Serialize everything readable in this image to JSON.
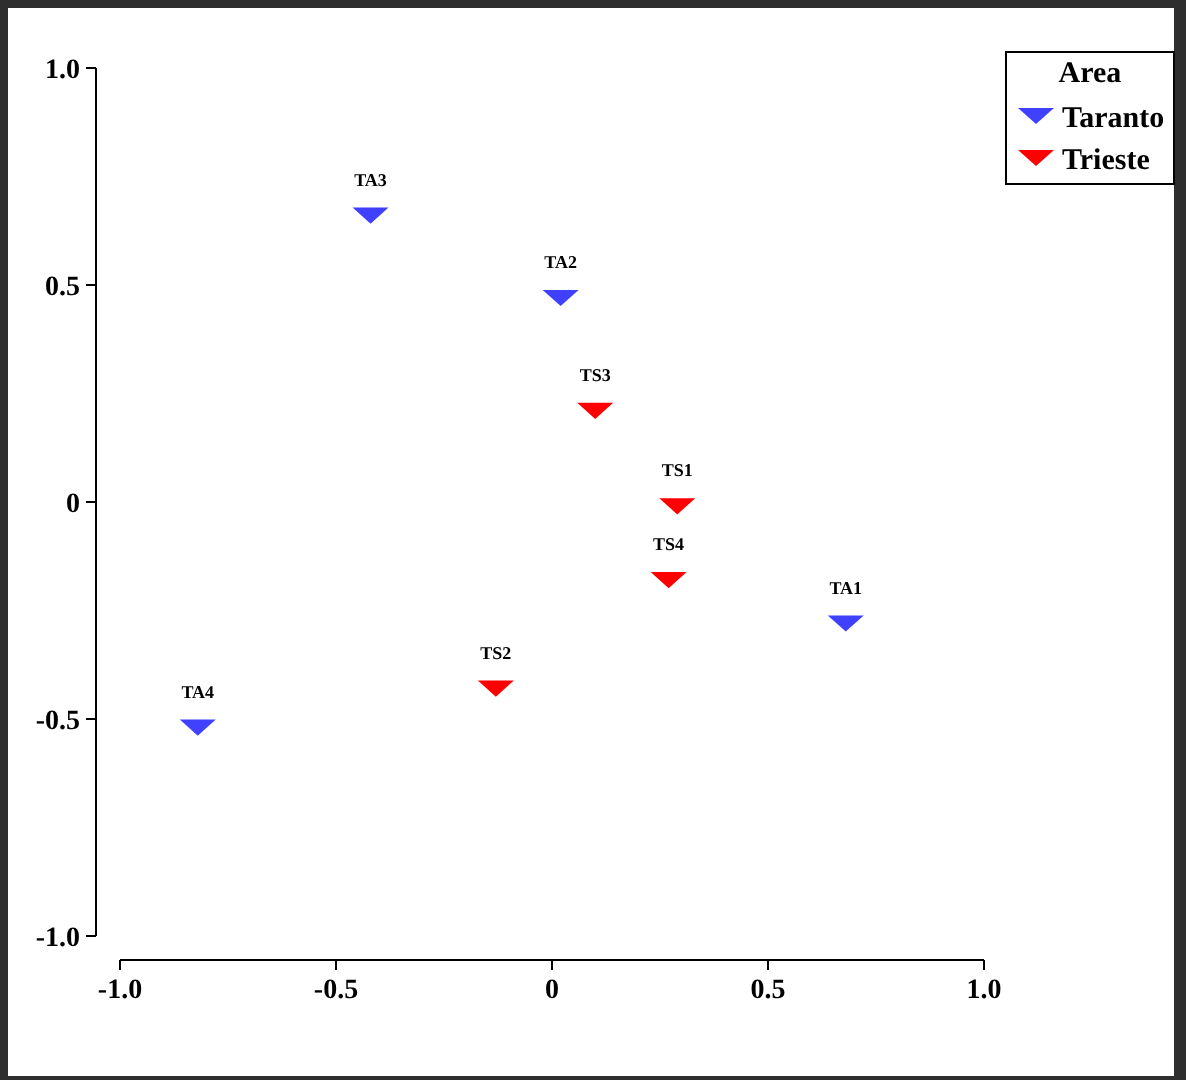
{
  "chart_data": {
    "type": "scatter",
    "legend_title": "Area",
    "legend": "top right",
    "marker": "triangle",
    "grid": false,
    "xlim": [
      -1,
      1
    ],
    "ylim": [
      -1,
      1
    ],
    "xticks": [
      {
        "value": -1,
        "label": "-1.0"
      },
      {
        "value": -0.5,
        "label": "-0.5"
      },
      0,
      0.5,
      {
        "value": 1,
        "label": "1.0"
      }
    ],
    "yticks": [
      {
        "value": -1,
        "label": "-1.0"
      },
      {
        "value": -0.5,
        "label": "-0.5"
      },
      0,
      0.5,
      {
        "value": 1,
        "label": "1.0"
      }
    ],
    "series": [
      {
        "name": "Taranto",
        "color": "#4040ff",
        "x": [
          0.68,
          0.02,
          -0.42,
          -0.82
        ],
        "values": [
          -0.28,
          0.47,
          0.66,
          -0.52
        ]
      },
      {
        "name": "Trieste",
        "color": "#ff0000",
        "x": [
          0.29,
          -0.13,
          0.1,
          0.27
        ],
        "values": [
          -0.01,
          -0.43,
          0.21,
          -0.18
        ]
      }
    ],
    "annotations": [
      {
        "text": "TA1",
        "x": 0.68,
        "y": -0.28
      },
      {
        "text": "TA2",
        "x": 0.02,
        "y": 0.47
      },
      {
        "text": "TA3",
        "x": -0.42,
        "y": 0.66
      },
      {
        "text": "TA4",
        "x": -0.82,
        "y": -0.52
      },
      {
        "text": "TS1",
        "x": 0.29,
        "y": -0.01
      },
      {
        "text": "TS2",
        "x": -0.13,
        "y": -0.43
      },
      {
        "text": "TS3",
        "x": 0.1,
        "y": 0.21
      },
      {
        "text": "TS4",
        "x": 0.27,
        "y": -0.18
      }
    ]
  }
}
